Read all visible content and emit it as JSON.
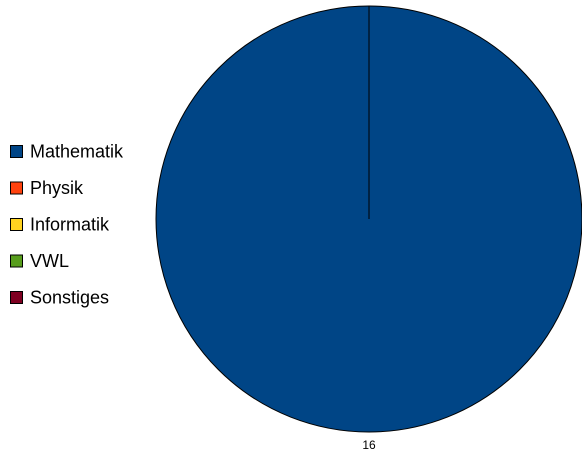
{
  "chart_data": {
    "type": "pie",
    "title": "",
    "categories": [
      "Mathematik",
      "Physik",
      "Informatik",
      "VWL",
      "Sonstiges"
    ],
    "values": [
      16,
      0,
      0,
      0,
      0
    ],
    "colors": [
      "#004586",
      "#ff420e",
      "#ffd320",
      "#579d1c",
      "#7e0021"
    ],
    "data_labels": [
      "16",
      "",
      "",
      "",
      ""
    ],
    "legend": {
      "placement": "left",
      "entries": [
        "Mathematik",
        "Physik",
        "Informatik",
        "VWL",
        "Sonstiges"
      ]
    }
  }
}
